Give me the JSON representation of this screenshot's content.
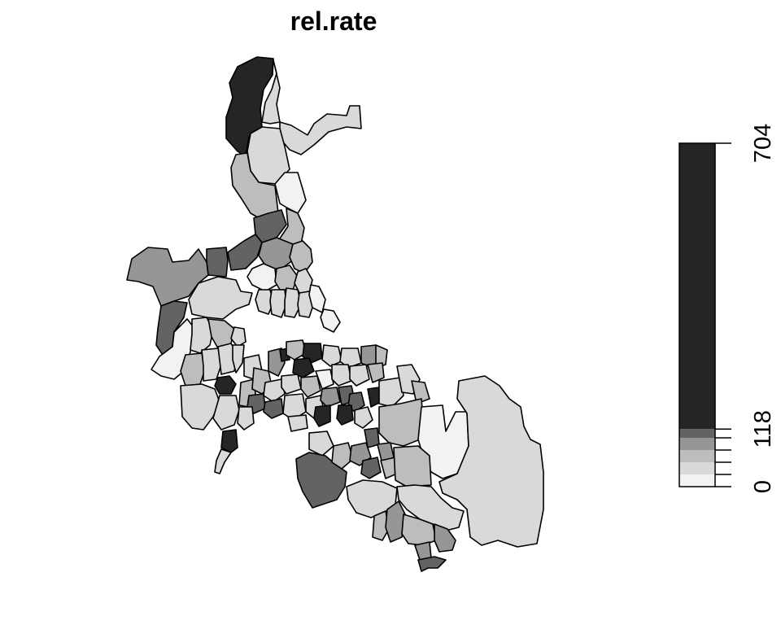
{
  "title": "rel.rate",
  "legend": {
    "min_label": "0",
    "mid_label": "118",
    "max_label": "704",
    "min": 0,
    "max": 704,
    "breaks": [
      0,
      25,
      50,
      75,
      100,
      118,
      704
    ],
    "colors": [
      "#f2f2f2",
      "#d9d9d9",
      "#bdbdbd",
      "#969696",
      "#636363",
      "#252525"
    ]
  }
}
